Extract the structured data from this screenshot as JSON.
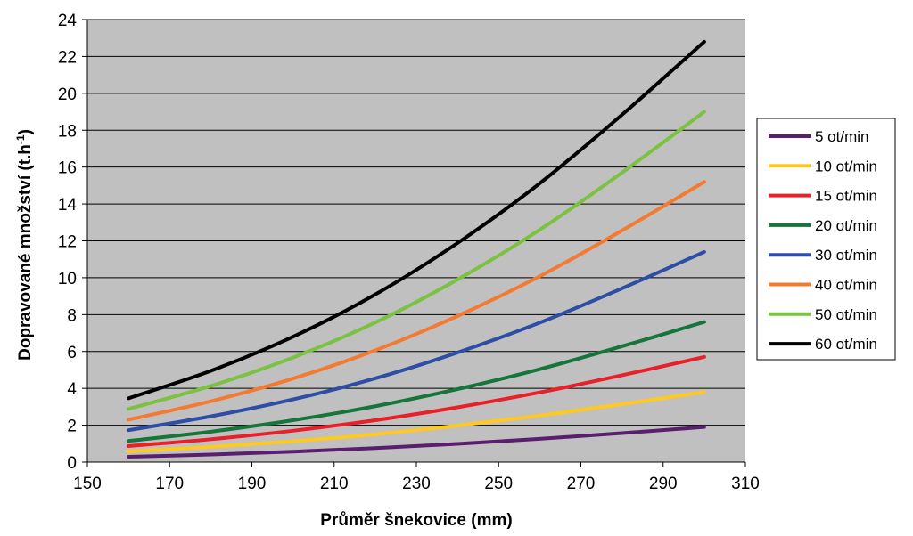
{
  "chart_data": {
    "type": "line",
    "xlabel": "Průměr šnekovice (mm)",
    "ylabel_main": "Dopravované množství (t.h",
    "ylabel_sup": "-1",
    "ylabel_close": ")",
    "xlim": [
      150,
      310
    ],
    "ylim": [
      0,
      24
    ],
    "xticks": [
      150,
      170,
      190,
      210,
      230,
      250,
      270,
      290,
      310
    ],
    "yticks": [
      0,
      2,
      4,
      6,
      8,
      10,
      12,
      14,
      16,
      18,
      20,
      22,
      24
    ],
    "grid": "horizontal",
    "plot_background": "#c0c0c0",
    "legend_position": "right",
    "x": [
      160,
      180,
      200,
      220,
      240,
      260,
      280,
      300
    ],
    "series": [
      {
        "name": "5 ot/min",
        "color": "#5a1e6e",
        "values": [
          0.29,
          0.41,
          0.57,
          0.76,
          0.99,
          1.26,
          1.57,
          1.9
        ]
      },
      {
        "name": "10 ot/min",
        "color": "#ffc91f",
        "values": [
          0.58,
          0.83,
          1.13,
          1.51,
          1.98,
          2.52,
          3.14,
          3.8
        ]
      },
      {
        "name": "15 ot/min",
        "color": "#e8202a",
        "values": [
          0.87,
          1.24,
          1.7,
          2.27,
          2.97,
          3.78,
          4.71,
          5.7
        ]
      },
      {
        "name": "20 ot/min",
        "color": "#16753b",
        "values": [
          1.15,
          1.65,
          2.27,
          3.03,
          3.96,
          5.04,
          6.28,
          7.6
        ]
      },
      {
        "name": "30 ot/min",
        "color": "#2e4da6",
        "values": [
          1.73,
          2.48,
          3.4,
          4.54,
          5.94,
          7.56,
          9.42,
          11.4
        ]
      },
      {
        "name": "40 ot/min",
        "color": "#f47a32",
        "values": [
          2.3,
          3.3,
          4.53,
          6.06,
          7.92,
          10.08,
          12.56,
          15.2
        ]
      },
      {
        "name": "50 ot/min",
        "color": "#7bc142",
        "values": [
          2.88,
          4.13,
          5.67,
          7.57,
          9.9,
          12.6,
          15.7,
          19.0
        ]
      },
      {
        "name": "60 ot/min",
        "color": "#000000",
        "values": [
          3.46,
          4.95,
          6.8,
          9.09,
          11.88,
          15.12,
          18.84,
          22.8
        ]
      }
    ]
  }
}
